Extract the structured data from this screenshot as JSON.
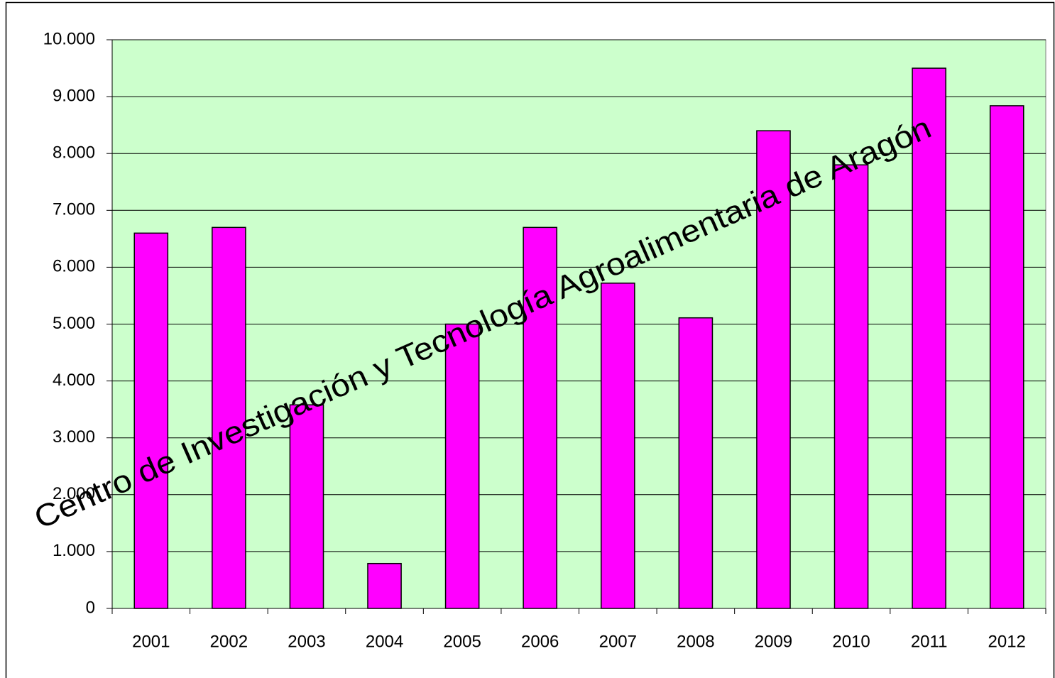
{
  "chart_data": {
    "type": "bar",
    "categories": [
      "2001",
      "2002",
      "2003",
      "2004",
      "2005",
      "2006",
      "2007",
      "2008",
      "2009",
      "2010",
      "2011",
      "2012"
    ],
    "values": [
      6600,
      6700,
      3580,
      790,
      5000,
      6700,
      5720,
      5110,
      8400,
      7800,
      9500,
      8840
    ],
    "color": "#ff00ff",
    "ylim": [
      0,
      10000
    ],
    "yticks": [
      0,
      {
        "value": 1000,
        "label": "1.000"
      },
      {
        "value": 2000,
        "label": "2.000"
      },
      {
        "value": 3000,
        "label": "3.000"
      },
      {
        "value": 4000,
        "label": "4.000"
      },
      {
        "value": 5000,
        "label": "5.000"
      },
      {
        "value": 6000,
        "label": "6.000"
      },
      {
        "value": 7000,
        "label": "7.000"
      },
      {
        "value": 8000,
        "label": "8.000"
      },
      {
        "value": 9000,
        "label": "9.000"
      },
      {
        "value": 10000,
        "label": "10.000"
      }
    ],
    "grid": true,
    "annotation": "Centro de Investigación y Tecnología Agroalimentaria de Aragón"
  }
}
